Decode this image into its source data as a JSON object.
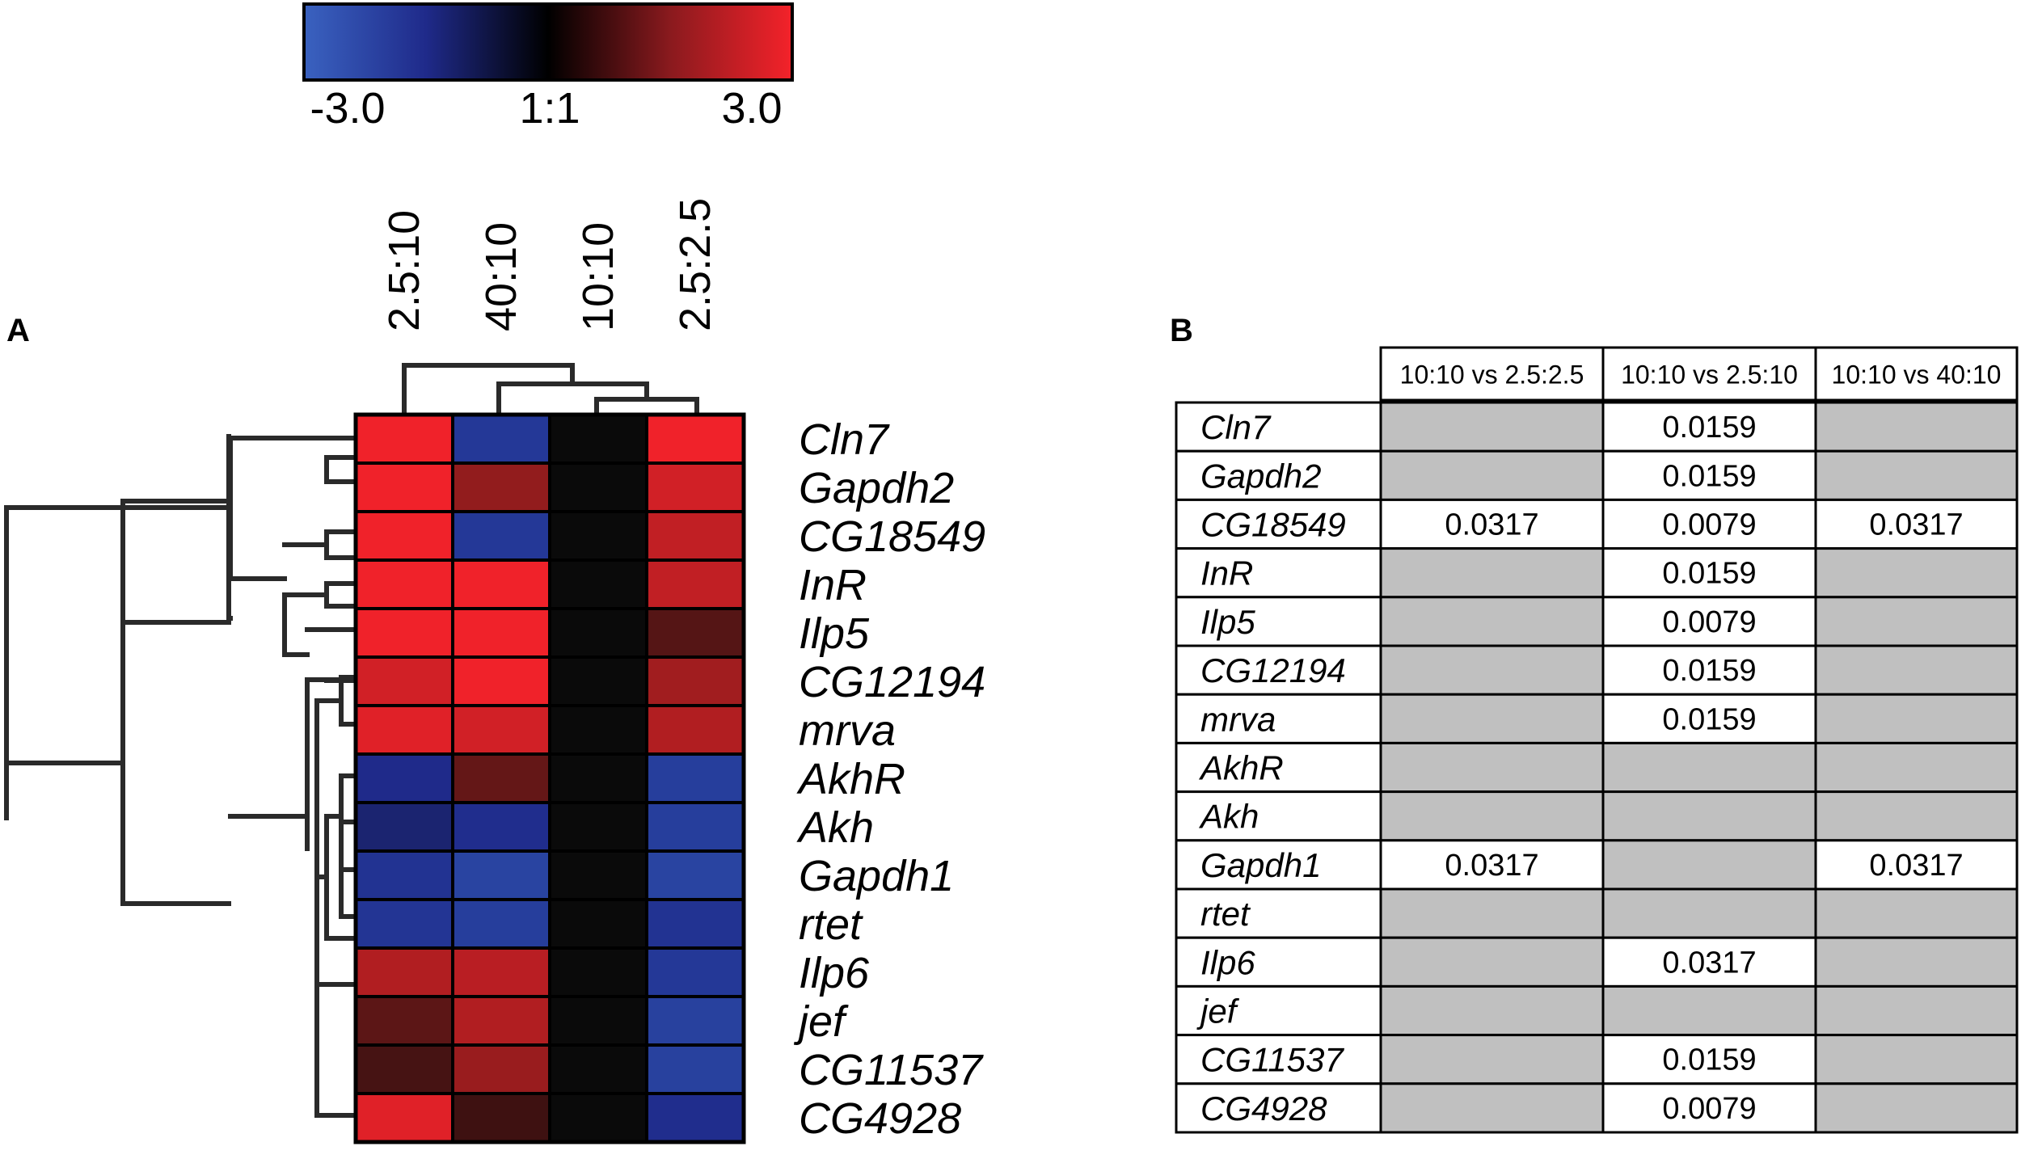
{
  "panels": {
    "a_label": "A",
    "b_label": "B"
  },
  "colorbar": {
    "min_label": "-3.0",
    "mid_label": "1:1",
    "max_label": "3.0",
    "colors": {
      "low": "#2f55b0",
      "mid_low": "#1f2a8a",
      "center": "#0a0a0a",
      "mid_high": "#7a1a1a",
      "high": "#f0222a"
    }
  },
  "chart_data": [
    {
      "type": "heatmap",
      "columns": [
        "2.5:10",
        "40:10",
        "10:10",
        "2.5:2.5"
      ],
      "rows": [
        "Cln7",
        "Gapdh2",
        "CG18549",
        "InR",
        "Ilp5",
        "CG12194",
        "mrva",
        "AkhR",
        "Akh",
        "Gapdh1",
        "rtet",
        "Ilp6",
        "jef",
        "CG11537",
        "CG4928"
      ],
      "color_range": [
        -3.0,
        3.0
      ],
      "values": [
        [
          3.0,
          -2.0,
          0,
          3.0
        ],
        [
          3.0,
          1.8,
          0,
          2.6
        ],
        [
          3.0,
          -2.0,
          0,
          2.4
        ],
        [
          3.0,
          3.0,
          0,
          2.4
        ],
        [
          3.0,
          3.0,
          0,
          1.0
        ],
        [
          2.6,
          3.0,
          0,
          2.0
        ],
        [
          2.8,
          2.6,
          0,
          2.2
        ],
        [
          -1.5,
          1.2,
          0,
          -2.2
        ],
        [
          -1.2,
          -1.6,
          0,
          -2.2
        ],
        [
          -1.8,
          -2.4,
          0,
          -2.4
        ],
        [
          -1.9,
          -2.2,
          0,
          -1.8
        ],
        [
          2.2,
          2.3,
          0,
          -2.0
        ],
        [
          1.1,
          2.2,
          0,
          -2.3
        ],
        [
          0.8,
          1.9,
          0,
          -2.3
        ],
        [
          2.8,
          0.7,
          0,
          -1.6
        ]
      ],
      "dendrogram": "hierarchical clustering of rows and columns"
    },
    {
      "type": "table",
      "headers": [
        "",
        "10:10 vs 2.5:2.5",
        "10:10 vs 2.5:10",
        "10:10 vs 40:10"
      ],
      "rows": [
        {
          "gene": "Cln7",
          "cells": [
            "",
            "0.0159",
            ""
          ]
        },
        {
          "gene": "Gapdh2",
          "cells": [
            "",
            "0.0159",
            ""
          ]
        },
        {
          "gene": "CG18549",
          "cells": [
            "0.0317",
            "0.0079",
            "0.0317"
          ]
        },
        {
          "gene": "InR",
          "cells": [
            "",
            "0.0159",
            ""
          ]
        },
        {
          "gene": "Ilp5",
          "cells": [
            "",
            "0.0079",
            ""
          ]
        },
        {
          "gene": "CG12194",
          "cells": [
            "",
            "0.0159",
            ""
          ]
        },
        {
          "gene": "mrva",
          "cells": [
            "",
            "0.0159",
            ""
          ]
        },
        {
          "gene": "AkhR",
          "cells": [
            "",
            "",
            ""
          ]
        },
        {
          "gene": "Akh",
          "cells": [
            "",
            "",
            ""
          ]
        },
        {
          "gene": "Gapdh1",
          "cells": [
            "0.0317",
            "",
            "0.0317"
          ]
        },
        {
          "gene": "rtet",
          "cells": [
            "",
            "",
            ""
          ]
        },
        {
          "gene": "Ilp6",
          "cells": [
            "",
            "0.0317",
            ""
          ]
        },
        {
          "gene": "jef",
          "cells": [
            "",
            "",
            ""
          ]
        },
        {
          "gene": "CG11537",
          "cells": [
            "",
            "0.0159",
            ""
          ]
        },
        {
          "gene": "CG4928",
          "cells": [
            "",
            "0.0079",
            ""
          ]
        }
      ],
      "colors": {
        "empty_cell": "#c0c0c0",
        "value_cell": "#ffffff"
      }
    }
  ]
}
